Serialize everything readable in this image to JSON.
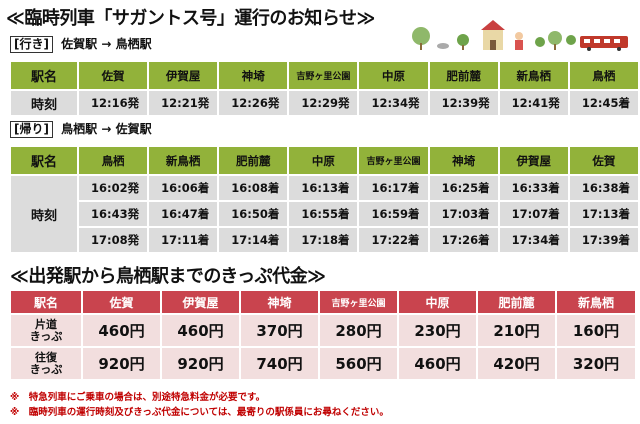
{
  "title": "≪臨時列車「サガントス号」運行のお知らせ≫",
  "outbound": {
    "label": "[行き]",
    "route": "佐賀駅 → 鳥栖駅",
    "header": [
      "駅名",
      "佐賀",
      "伊賀屋",
      "神埼",
      "吉野ヶ里公園",
      "中原",
      "肥前麓",
      "新鳥栖",
      "鳥栖"
    ],
    "row_label": "時刻",
    "times": [
      "12:16発",
      "12:21発",
      "12:26発",
      "12:29発",
      "12:34発",
      "12:39発",
      "12:41発",
      "12:45着"
    ]
  },
  "inbound": {
    "label": "[帰り]",
    "route": "鳥栖駅 → 佐賀駅",
    "header": [
      "駅名",
      "鳥栖",
      "新鳥栖",
      "肥前麓",
      "中原",
      "吉野ヶ里公園",
      "神埼",
      "伊賀屋",
      "佐賀"
    ],
    "row_label": "時刻",
    "rows": [
      [
        "16:02発",
        "16:06着",
        "16:08着",
        "16:13着",
        "16:17着",
        "16:25着",
        "16:33着",
        "16:38着"
      ],
      [
        "16:43発",
        "16:47着",
        "16:50着",
        "16:55着",
        "16:59着",
        "17:03着",
        "17:07着",
        "17:13着"
      ],
      [
        "17:08発",
        "17:11着",
        "17:14着",
        "17:18着",
        "17:22着",
        "17:26着",
        "17:34着",
        "17:39着"
      ]
    ]
  },
  "fare": {
    "title": "≪出発駅から鳥栖駅までのきっぷ代金≫",
    "header": [
      "駅名",
      "佐賀",
      "伊賀屋",
      "神埼",
      "吉野ヶ里公園",
      "中原",
      "肥前麓",
      "新鳥栖"
    ],
    "rows": [
      {
        "label1": "片道",
        "label2": "きっぷ",
        "values": [
          "460円",
          "460円",
          "370円",
          "280円",
          "230円",
          "210円",
          "160円"
        ]
      },
      {
        "label1": "往復",
        "label2": "きっぷ",
        "values": [
          "920円",
          "920円",
          "740円",
          "560円",
          "460円",
          "420円",
          "320円"
        ]
      }
    ]
  },
  "notes": [
    "※　特急列車にご乗車の場合は、別途特急料金が必要です。",
    "※　臨時列車の運行時刻及びきっぷ代金については、最寄りの駅係員にお尋ねください。"
  ],
  "colors": {
    "timetable_header": "#92b23a",
    "fare_header": "#c9444e",
    "note": "#c00000"
  }
}
